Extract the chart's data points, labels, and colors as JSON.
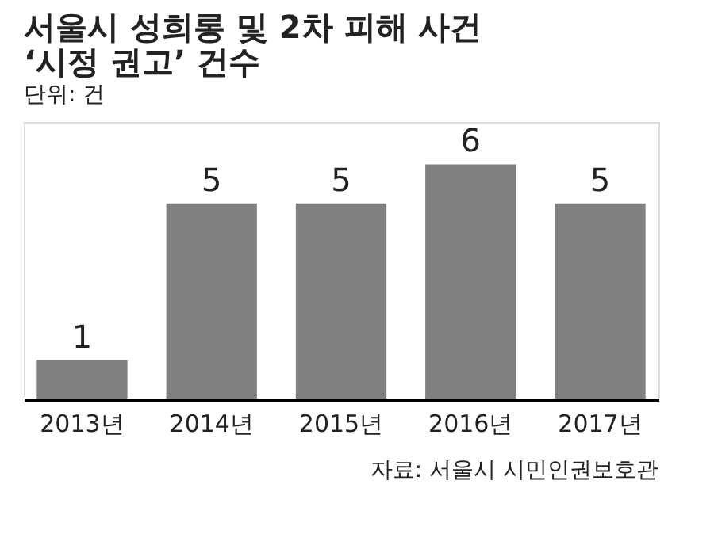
{
  "chart_data": {
    "type": "bar",
    "title": [
      "서울시 성희롱 및 2차 피해 사건",
      "‘시정 권고’ 건수"
    ],
    "subtitle": "단위: 건",
    "categories": [
      "2013년",
      "2014년",
      "2015년",
      "2016년",
      "2017년"
    ],
    "values": [
      1,
      5,
      5,
      6,
      5
    ],
    "color": "#808080",
    "data_labels": true,
    "grid": false,
    "annotations": [
      "자료: 서울시 시민인권보호관"
    ]
  }
}
